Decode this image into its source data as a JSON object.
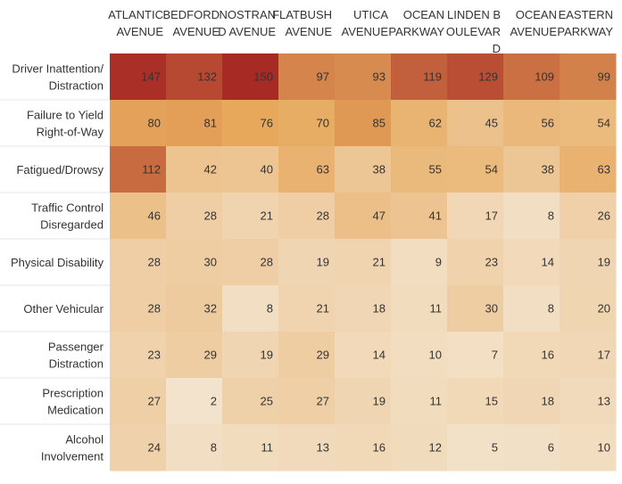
{
  "chart_data": {
    "type": "heatmap",
    "title": "",
    "xlabel": "",
    "ylabel": "",
    "columns": [
      "ATLANTIC AVENUE",
      "BEDFORD AVENUE",
      "NOSTRAND AVENUE",
      "FLATBUSH AVENUE",
      "UTICA AVENUE",
      "OCEAN PARKWAY",
      "LINDEN BOULEVARD",
      "OCEAN AVENUE",
      "EASTERN PARKWAY"
    ],
    "column_label_lines": [
      [
        "ATLANTIC",
        "AVENUE"
      ],
      [
        "BEDFORD",
        "AVENUE"
      ],
      [
        "NOSTRAN",
        "D AVENUE"
      ],
      [
        "FLATBUSH",
        "AVENUE"
      ],
      [
        "UTICA",
        "AVENUE"
      ],
      [
        "OCEAN",
        "PARKWAY"
      ],
      [
        "LINDEN B",
        "OULEVAR",
        "D"
      ],
      [
        "OCEAN",
        "AVENUE"
      ],
      [
        "EASTERN",
        "PARKWAY"
      ]
    ],
    "rows": [
      "Driver Inattention/Distraction",
      "Failure to Yield Right-of-Way",
      "Fatigued/Drowsy",
      "Traffic Control Disregarded",
      "Physical Disability",
      "Other Vehicular",
      "Passenger Distraction",
      "Prescription Medication",
      "Alcohol Involvement"
    ],
    "row_label_lines": [
      [
        "Driver Inattention/",
        "Distraction"
      ],
      [
        "Failure to Yield",
        "Right-of-Way"
      ],
      [
        "Fatigued/Drowsy"
      ],
      [
        "Traffic Control",
        "Disregarded"
      ],
      [
        "Physical Disability"
      ],
      [
        "Other Vehicular"
      ],
      [
        "Passenger",
        "Distraction"
      ],
      [
        "Prescription",
        "Medication"
      ],
      [
        "Alcohol",
        "Involvement"
      ]
    ],
    "values": [
      [
        147,
        132,
        150,
        97,
        93,
        119,
        129,
        109,
        99
      ],
      [
        80,
        81,
        76,
        70,
        85,
        62,
        45,
        56,
        54
      ],
      [
        112,
        42,
        40,
        63,
        38,
        55,
        54,
        38,
        63
      ],
      [
        46,
        28,
        21,
        28,
        47,
        41,
        17,
        8,
        26
      ],
      [
        28,
        30,
        28,
        19,
        21,
        9,
        23,
        14,
        19
      ],
      [
        28,
        32,
        8,
        21,
        18,
        11,
        30,
        8,
        20
      ],
      [
        23,
        29,
        19,
        29,
        14,
        10,
        7,
        16,
        17
      ],
      [
        27,
        2,
        25,
        27,
        19,
        11,
        15,
        18,
        13
      ],
      [
        24,
        8,
        11,
        13,
        16,
        12,
        5,
        6,
        10
      ]
    ],
    "color_scale": {
      "low": "#f3e3cc",
      "mid": "#e7a85c",
      "high": "#a72a25"
    }
  }
}
